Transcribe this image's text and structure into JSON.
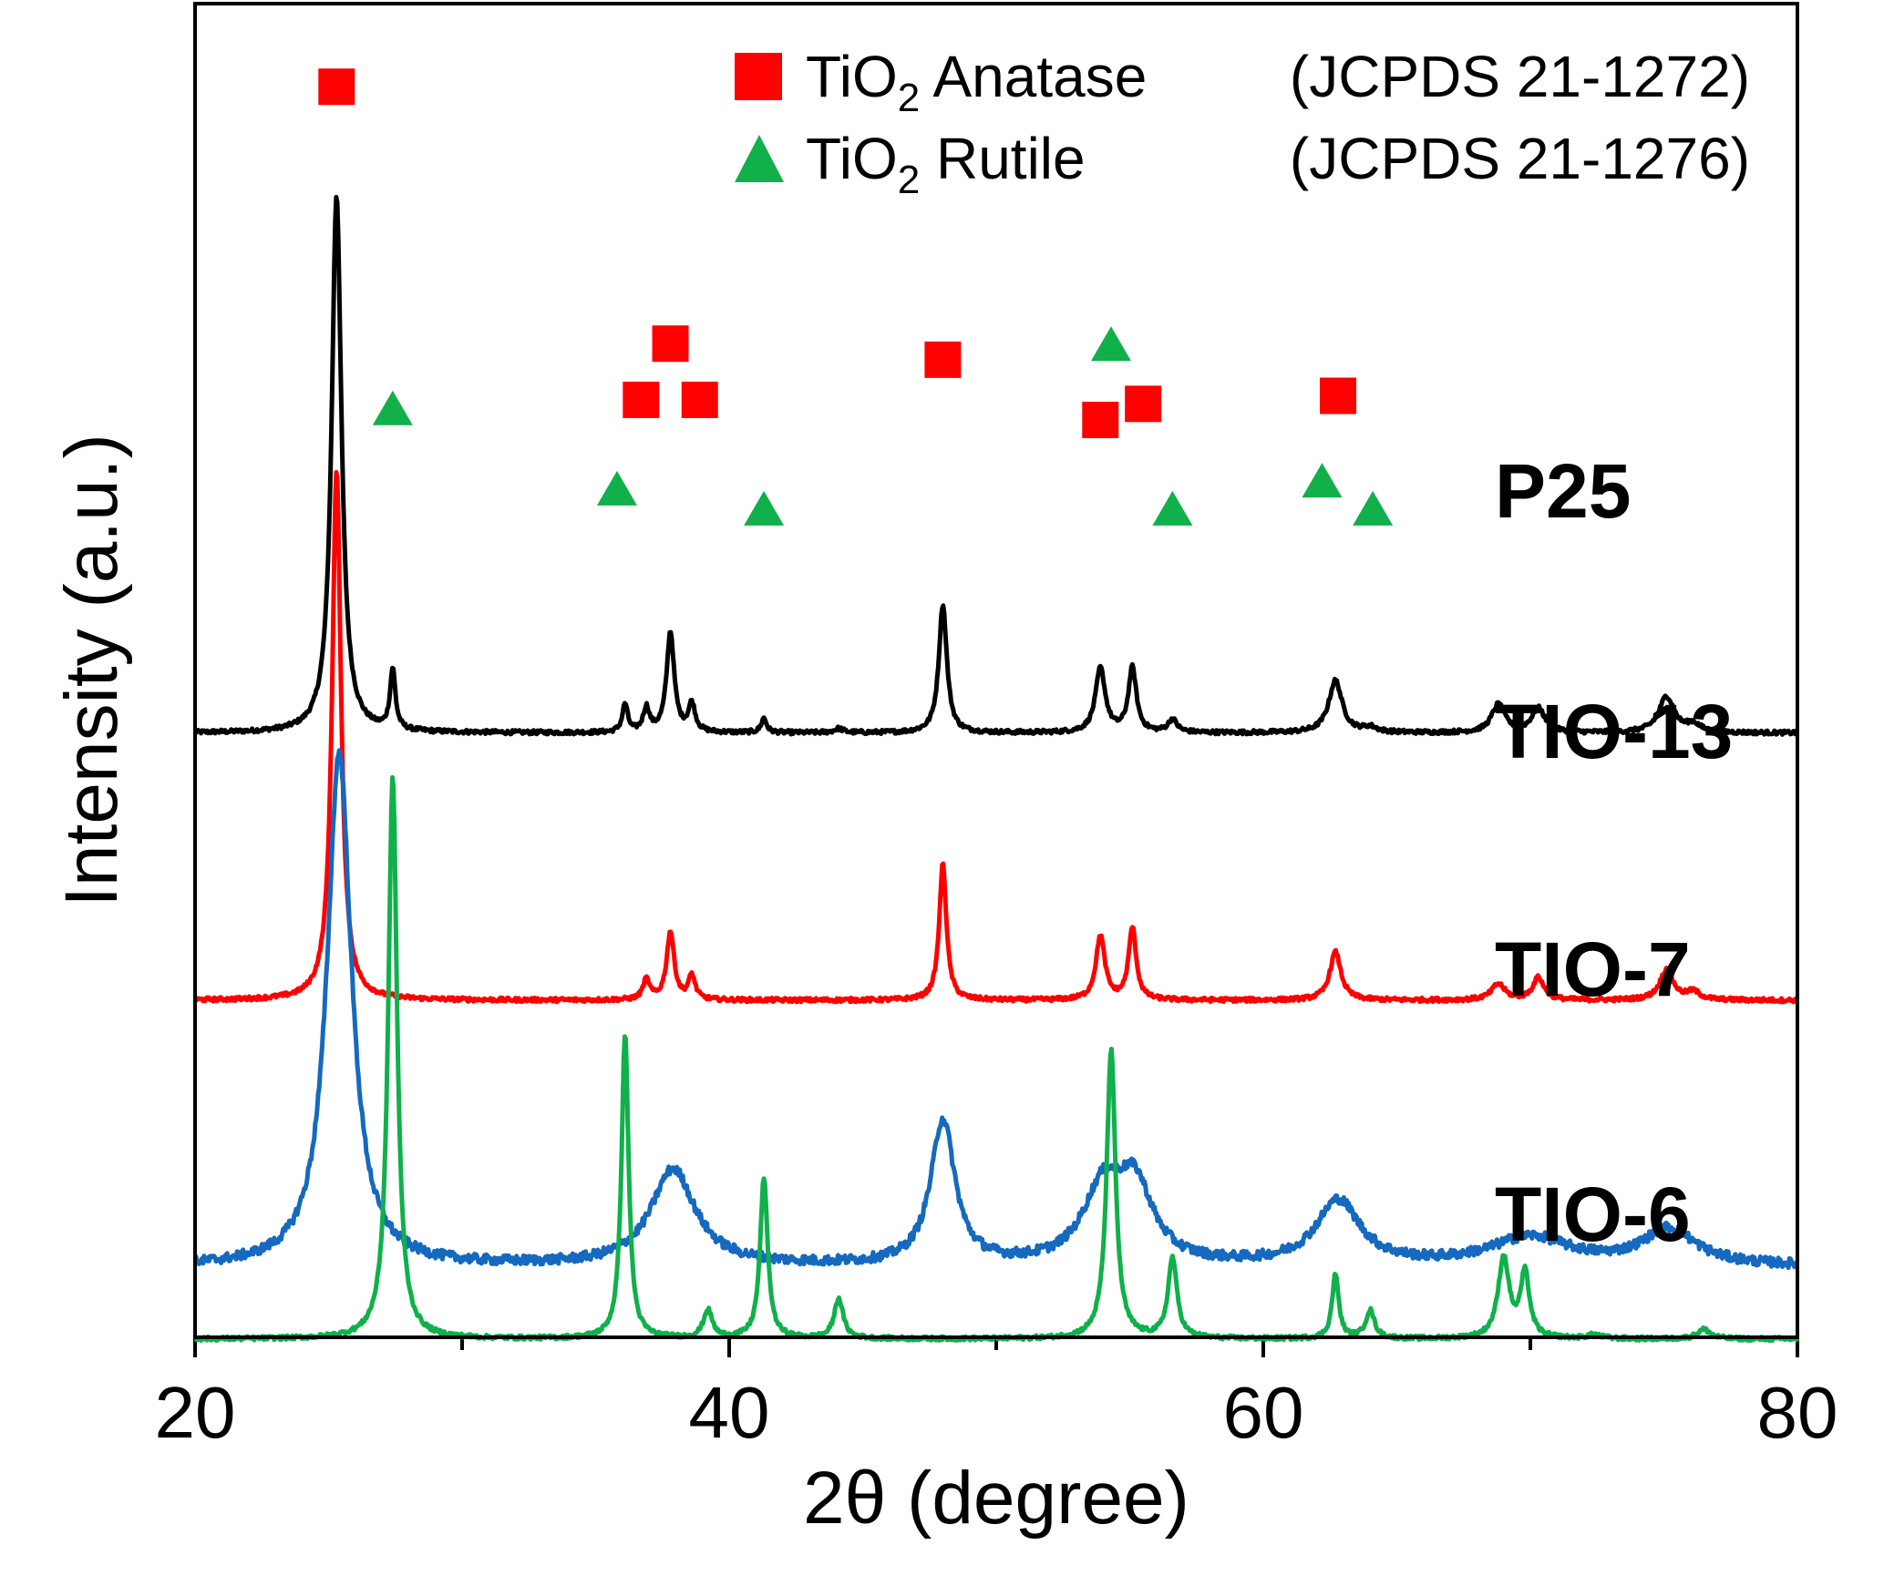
{
  "chart_data": {
    "type": "line",
    "xlabel": "2θ (degree)",
    "ylabel": "Intensity (a.u.)",
    "xlim": [
      20,
      80
    ],
    "x_ticks": [
      20,
      40,
      60,
      80
    ],
    "x_minor_ticks": [
      30,
      50,
      70
    ],
    "y_ticks_shown": false,
    "grid": false,
    "legend": {
      "placement": "top-right",
      "entries": [
        {
          "marker": "square",
          "color": "#ff0000",
          "name": "TiO",
          "sub": "2",
          "rest": " Anatase",
          "ref": "(JCPDS 21-1272)"
        },
        {
          "marker": "triangle",
          "color": "#10b04a",
          "name": "TiO",
          "sub": "2",
          "rest": " Rutile",
          "ref": "(JCPDS 21-1276)"
        }
      ]
    },
    "series": [
      {
        "name": "P25",
        "color": "#000000",
        "baseline": 0.755,
        "noise": 0.0025,
        "peaks": [
          [
            25.3,
            0.67,
            0.22
          ],
          [
            27.4,
            0.075,
            0.12
          ],
          [
            36.1,
            0.035,
            0.12
          ],
          [
            36.9,
            0.03,
            0.14
          ],
          [
            37.8,
            0.125,
            0.17
          ],
          [
            38.6,
            0.035,
            0.15
          ],
          [
            41.3,
            0.018,
            0.12
          ],
          [
            44.1,
            0.005,
            0.2
          ],
          [
            48.0,
            0.16,
            0.18
          ],
          [
            53.9,
            0.08,
            0.22
          ],
          [
            55.1,
            0.08,
            0.18
          ],
          [
            56.6,
            0.016,
            0.2
          ],
          [
            62.7,
            0.065,
            0.3
          ],
          [
            64.0,
            0.006,
            0.3
          ],
          [
            68.8,
            0.035,
            0.3
          ],
          [
            70.3,
            0.03,
            0.3
          ],
          [
            75.1,
            0.045,
            0.35
          ],
          [
            76.1,
            0.01,
            0.3
          ]
        ]
      },
      {
        "name": "TIO-13",
        "color": "#ff0000",
        "baseline": 0.422,
        "noise": 0.0025,
        "peaks": [
          [
            25.3,
            0.66,
            0.2
          ],
          [
            36.9,
            0.025,
            0.15
          ],
          [
            37.8,
            0.085,
            0.17
          ],
          [
            38.6,
            0.03,
            0.15
          ],
          [
            48.0,
            0.17,
            0.16
          ],
          [
            53.9,
            0.08,
            0.2
          ],
          [
            55.1,
            0.09,
            0.17
          ],
          [
            62.7,
            0.06,
            0.25
          ],
          [
            68.8,
            0.02,
            0.3
          ],
          [
            70.3,
            0.028,
            0.25
          ],
          [
            75.1,
            0.038,
            0.3
          ],
          [
            76.1,
            0.01,
            0.3
          ]
        ]
      },
      {
        "name": "TIO-7",
        "color": "#1569be",
        "baseline": 0.09,
        "noise": 0.006,
        "peaks": [
          [
            25.4,
            0.64,
            0.55
          ],
          [
            37.9,
            0.12,
            1.0
          ],
          [
            48.0,
            0.18,
            0.55
          ],
          [
            54.0,
            0.09,
            0.9
          ],
          [
            55.2,
            0.09,
            0.8
          ],
          [
            62.8,
            0.08,
            1.0
          ],
          [
            70.0,
            0.035,
            1.8
          ],
          [
            75.2,
            0.045,
            1.2
          ]
        ]
      },
      {
        "name": "TIO-6",
        "color": "#10b04a",
        "baseline": 0.0,
        "noise": 0.0025,
        "peaks": [
          [
            27.4,
            0.7,
            0.2
          ],
          [
            36.1,
            0.38,
            0.16
          ],
          [
            39.2,
            0.035,
            0.2
          ],
          [
            41.3,
            0.2,
            0.17
          ],
          [
            44.1,
            0.05,
            0.2
          ],
          [
            54.3,
            0.36,
            0.2
          ],
          [
            56.6,
            0.1,
            0.2
          ],
          [
            62.7,
            0.08,
            0.15
          ],
          [
            64.0,
            0.035,
            0.2
          ],
          [
            69.0,
            0.1,
            0.25
          ],
          [
            69.8,
            0.08,
            0.2
          ],
          [
            72.4,
            0.005,
            0.3
          ],
          [
            76.5,
            0.012,
            0.3
          ]
        ]
      }
    ],
    "markers": {
      "anatase": [
        [
          25.3,
          1.56
        ],
        [
          37.8,
          1.24
        ],
        [
          36.7,
          1.17
        ],
        [
          38.9,
          1.17
        ],
        [
          48.0,
          1.22
        ],
        [
          53.9,
          1.145
        ],
        [
          55.5,
          1.165
        ],
        [
          62.8,
          1.175
        ]
      ],
      "rutile": [
        [
          27.4,
          1.16
        ],
        [
          35.8,
          1.06
        ],
        [
          41.3,
          1.035
        ],
        [
          54.3,
          1.24
        ],
        [
          56.6,
          1.035
        ],
        [
          62.2,
          1.07
        ],
        [
          64.1,
          1.035
        ]
      ]
    }
  }
}
